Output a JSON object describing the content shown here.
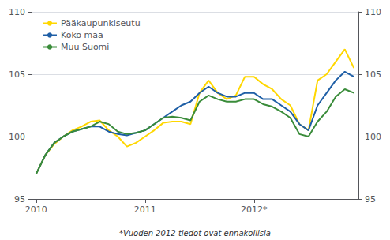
{
  "chart_data": {
    "type": "line",
    "categories": [
      "2010",
      null,
      null,
      null,
      null,
      null,
      null,
      null,
      null,
      null,
      null,
      null,
      "2011",
      null,
      null,
      null,
      null,
      null,
      null,
      null,
      null,
      null,
      null,
      null,
      "2012*",
      null,
      null,
      null,
      null,
      null,
      null,
      null,
      null,
      null,
      null,
      null
    ],
    "series": [
      {
        "name": "Pääkaupunkiseutu",
        "color": "#FFD700",
        "values": [
          97.0,
          98.5,
          99.4,
          100.0,
          100.5,
          100.8,
          101.2,
          101.3,
          100.5,
          100.0,
          99.2,
          99.5,
          100.0,
          100.5,
          101.1,
          101.2,
          101.2,
          101.0,
          103.5,
          104.5,
          103.5,
          103.0,
          103.3,
          104.8,
          104.8,
          104.2,
          103.8,
          103.0,
          102.5,
          101.0,
          100.5,
          104.5,
          105.0,
          106.0,
          107.0,
          105.5
        ]
      },
      {
        "name": "Koko maa",
        "color": "#1F5FA6",
        "values": [
          97.0,
          98.5,
          99.5,
          100.0,
          100.4,
          100.6,
          100.8,
          100.8,
          100.4,
          100.2,
          100.1,
          100.3,
          100.5,
          101.0,
          101.5,
          102.0,
          102.5,
          102.8,
          103.5,
          104.0,
          103.5,
          103.2,
          103.2,
          103.5,
          103.5,
          103.0,
          103.0,
          102.5,
          102.0,
          101.0,
          100.5,
          102.5,
          103.5,
          104.5,
          105.2,
          104.8
        ]
      },
      {
        "name": "Muu Suomi",
        "color": "#3A8C3A",
        "values": [
          97.0,
          98.5,
          99.5,
          100.0,
          100.4,
          100.6,
          100.8,
          101.2,
          101.0,
          100.4,
          100.2,
          100.3,
          100.5,
          101.0,
          101.5,
          101.6,
          101.5,
          101.3,
          102.8,
          103.3,
          103.0,
          102.8,
          102.8,
          103.0,
          103.0,
          102.6,
          102.4,
          102.0,
          101.5,
          100.2,
          100.0,
          101.2,
          102.0,
          103.2,
          103.8,
          103.5
        ]
      }
    ],
    "ylim": [
      95,
      110
    ],
    "yticks": [
      95,
      100,
      105,
      110
    ],
    "y2lim": [
      95,
      110
    ],
    "y2ticks": [
      95,
      100,
      105,
      110
    ],
    "grid": true,
    "legend": "upper left",
    "annotations": [
      "*Vuoden 2012 tiedot ovat ennakollisia"
    ]
  }
}
